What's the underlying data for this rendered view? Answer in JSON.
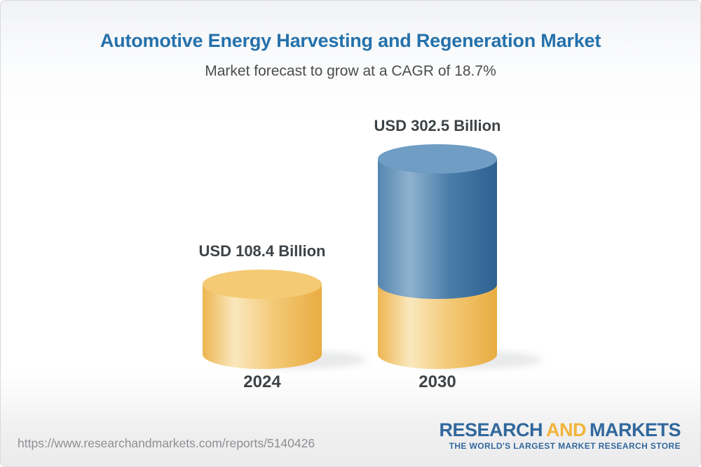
{
  "header": {
    "title": "Automotive Energy Harvesting and Regeneration Market",
    "subtitle": "Market forecast to grow at a CAGR of 18.7%"
  },
  "chart_data": {
    "type": "bar",
    "subtype": "3d-cylinder",
    "categories": [
      "2024",
      "2030"
    ],
    "values": [
      108.4,
      302.5
    ],
    "value_labels": [
      "USD 108.4 Billion",
      "USD 302.5 Billion"
    ],
    "unit": "USD Billion",
    "cagr": "18.7%",
    "stacking_note": "2030 cylinder shows the 2024 base value in gold with the forecast growth segment in blue above it",
    "legend": "none",
    "grid": false,
    "colors": {
      "gold_top": "#F4CA74",
      "gold_body": [
        "#EDB551",
        "#FAE8BE",
        "#F3C977",
        "#E9AC41"
      ],
      "blue_top": "#6F9DC4",
      "blue_body": [
        "#5586B1",
        "#8FB2CE",
        "#4A7DA9",
        "#2F6191"
      ]
    }
  },
  "footer": {
    "url": "https://www.researchandmarkets.com/reports/5140426",
    "logo": {
      "word1": "RESEARCH",
      "word2": "AND",
      "word3": "MARKETS",
      "tagline": "THE WORLD'S LARGEST MARKET RESEARCH STORE",
      "blue": "#32689D",
      "gold": "#F2B43B"
    }
  },
  "theme": {
    "title_blue": "#2471AC",
    "text_dark": "#3E4347",
    "url_gray": "#8E8F91"
  }
}
